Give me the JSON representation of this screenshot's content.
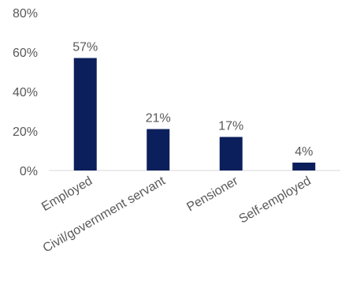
{
  "colors": {
    "bar": "#0b1f5c",
    "text": "#595959",
    "axis": "#d9d9d9"
  },
  "chart_data": {
    "type": "bar",
    "categories": [
      "Employed",
      "Civil/government servant",
      "Pensioner",
      "Self-employed"
    ],
    "values": [
      57,
      21,
      17,
      4
    ],
    "data_labels": [
      "57%",
      "21%",
      "17%",
      "4%"
    ],
    "y_ticks": [
      "0%",
      "20%",
      "40%",
      "60%",
      "80%"
    ],
    "ylim": [
      0,
      80
    ],
    "grid": false,
    "legend": "none",
    "title": "",
    "xlabel": "",
    "ylabel": ""
  }
}
